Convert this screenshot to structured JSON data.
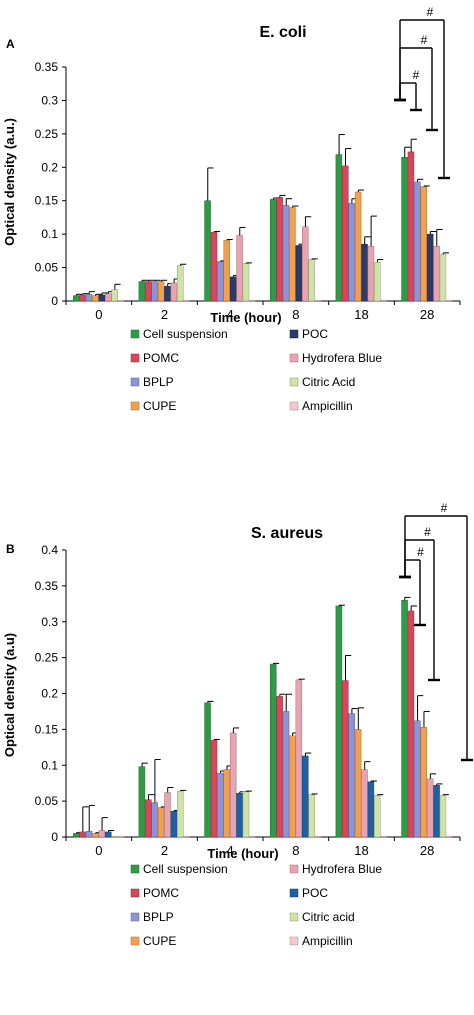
{
  "chart_data": [
    {
      "panel_label": "A",
      "type": "bar",
      "title": "E. coli",
      "xlabel": "Time (hour)",
      "ylabel": "Optical density (a.u.)",
      "ylim": [
        0,
        0.35
      ],
      "yticks": [
        "0",
        "0.05",
        "0.1",
        "0.15",
        "0.2",
        "0.25",
        "0.3",
        "0.35"
      ],
      "categories": [
        "0",
        "2",
        "4",
        "8",
        "18",
        "28"
      ],
      "series": [
        {
          "name": "Cell suspension",
          "color": "#2e9b46",
          "values": [
            0.008,
            0.029,
            0.15,
            0.152,
            0.219,
            0.215
          ],
          "errors": [
            0.002,
            0.002,
            0.049,
            0.002,
            0.03,
            0.015
          ]
        },
        {
          "name": "POMC",
          "color": "#d9455a",
          "values": [
            0.009,
            0.029,
            0.103,
            0.155,
            0.202,
            0.223
          ],
          "errors": [
            0.002,
            0.002,
            0.001,
            0.003,
            0.026,
            0.019
          ]
        },
        {
          "name": "BPLP",
          "color": "#8a94d6",
          "values": [
            0.01,
            0.029,
            0.059,
            0.143,
            0.146,
            0.178
          ],
          "errors": [
            0.004,
            0.002,
            0.001,
            0.01,
            0.007,
            0.004
          ]
        },
        {
          "name": "CUPE",
          "color": "#f2a04e",
          "values": [
            0.008,
            0.029,
            0.091,
            0.14,
            0.163,
            0.171
          ],
          "errors": [
            0.002,
            0.002,
            0.001,
            0.002,
            0.003,
            0.001
          ]
        },
        {
          "name": "POC",
          "color": "#2b3a67",
          "values": [
            0.009,
            0.022,
            0.036,
            0.083,
            0.085,
            0.1
          ],
          "errors": [
            0.003,
            0.004,
            0.002,
            0.002,
            0.011,
            0.004
          ]
        },
        {
          "name": "Hydrofera Blue",
          "color": "#e8a3b0",
          "values": [
            0.011,
            0.027,
            0.098,
            0.111,
            0.082,
            0.082
          ],
          "errors": [
            0.003,
            0.006,
            0.012,
            0.015,
            0.045,
            0.025
          ]
        },
        {
          "name": "Citric Acid",
          "color": "#cfe3a8",
          "values": [
            0.017,
            0.053,
            0.056,
            0.062,
            0.058,
            0.07
          ],
          "errors": [
            0.008,
            0.002,
            0.001,
            0.001,
            0.004,
            0.002
          ]
        },
        {
          "name": "Ampicillin",
          "color": "#f4c9cd",
          "values": [
            0.001,
            0.001,
            0.001,
            0.001,
            0.001,
            0.001
          ],
          "errors": [
            0,
            0,
            0,
            0,
            0,
            0
          ]
        }
      ],
      "annotations": [
        "#",
        "#",
        "#"
      ]
    },
    {
      "panel_label": "B",
      "type": "bar",
      "title": "S. aureus",
      "xlabel": "Time (hour)",
      "ylabel": "Optical density (a.u)",
      "ylim": [
        0,
        0.4
      ],
      "yticks": [
        "0",
        "0.05",
        "0.1",
        "0.15",
        "0.2",
        "0.25",
        "0.3",
        "0.35",
        "0.4"
      ],
      "categories": [
        "0",
        "2",
        "4",
        "8",
        "18",
        "28"
      ],
      "series": [
        {
          "name": "Cell suspension",
          "color": "#2e9b46",
          "values": [
            0.005,
            0.098,
            0.187,
            0.241,
            0.322,
            0.33
          ],
          "errors": [
            0.001,
            0.005,
            0.002,
            0.001,
            0.001,
            0.004
          ]
        },
        {
          "name": "POMC",
          "color": "#d9455a",
          "values": [
            0.007,
            0.052,
            0.135,
            0.196,
            0.218,
            0.315
          ],
          "errors": [
            0.035,
            0.007,
            0.001,
            0.003,
            0.035,
            0.007
          ]
        },
        {
          "name": "BPLP",
          "color": "#8a94d6",
          "values": [
            0.008,
            0.048,
            0.089,
            0.175,
            0.172,
            0.162
          ],
          "errors": [
            0.036,
            0.06,
            0.003,
            0.024,
            0.007,
            0.035
          ]
        },
        {
          "name": "CUPE",
          "color": "#f2a04e",
          "values": [
            0.005,
            0.041,
            0.094,
            0.141,
            0.15,
            0.153
          ],
          "errors": [
            0.001,
            0.001,
            0.005,
            0.004,
            0.03,
            0.022
          ]
        },
        {
          "name": "Hydrofera Blue",
          "color": "#e8a3b0",
          "values": [
            0.009,
            0.062,
            0.145,
            0.219,
            0.094,
            0.081
          ],
          "errors": [
            0.018,
            0.007,
            0.007,
            0.001,
            0.011,
            0.007
          ]
        },
        {
          "name": "POC",
          "color": "#1f5fa6",
          "values": [
            0.007,
            0.036,
            0.061,
            0.113,
            0.077,
            0.072
          ],
          "errors": [
            0.002,
            0.001,
            0.002,
            0.004,
            0.001,
            0.002
          ]
        },
        {
          "name": "Citric acid",
          "color": "#cfe3a8",
          "values": [
            0.001,
            0.064,
            0.063,
            0.059,
            0.058,
            0.058
          ],
          "errors": [
            0,
            0.001,
            0.001,
            0.001,
            0.001,
            0.001
          ]
        },
        {
          "name": "Ampicillin",
          "color": "#f4c9cd",
          "values": [
            0.001,
            0.001,
            0.001,
            0.001,
            0.001,
            0.001
          ],
          "errors": [
            0,
            0,
            0,
            0,
            0,
            0
          ]
        }
      ],
      "annotations": [
        "#",
        "#",
        "#"
      ]
    }
  ]
}
